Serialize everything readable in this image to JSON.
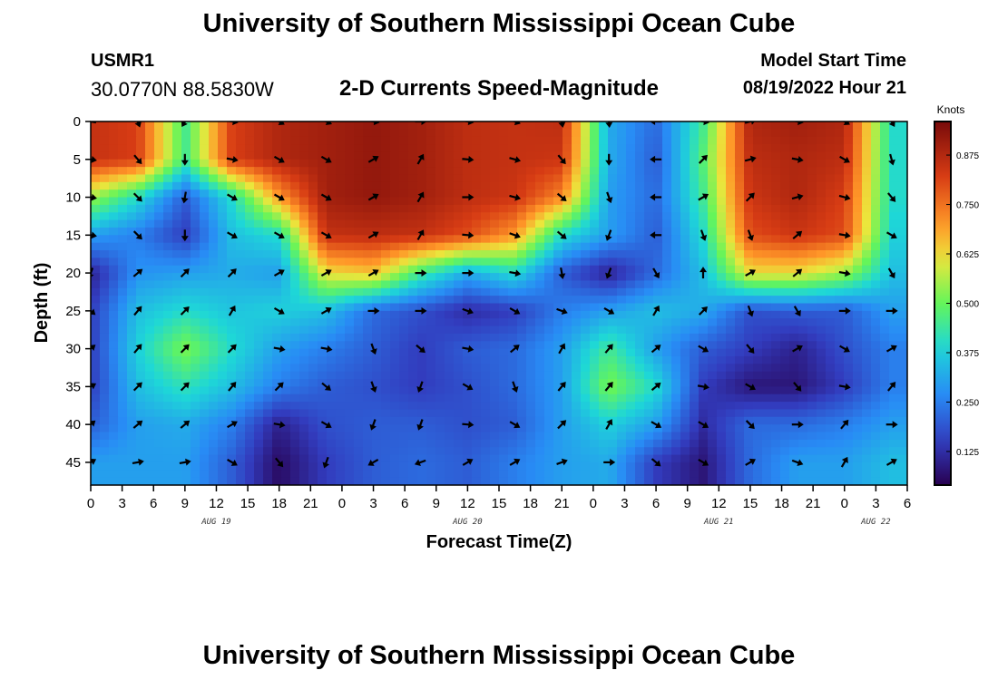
{
  "header": {
    "title": "University of Southern Mississippi Ocean Cube",
    "station": "USMR1",
    "coordinates": "30.0770N  88.5830W",
    "subtitle": "2-D Currents Speed-Magnitude",
    "model_start_label": "Model Start Time",
    "model_start_value": "08/19/2022 Hour 21"
  },
  "footer": {
    "title": "University of Southern Mississippi Ocean Cube"
  },
  "chart_data": {
    "type": "heatmap",
    "title": "2-D Currents Speed-Magnitude",
    "xlabel": "Forecast Time(Z)",
    "ylabel": "Depth (ft)",
    "colorbar_label": "Knots",
    "colorbar_ticks": [
      0.125,
      0.25,
      0.375,
      0.5,
      0.625,
      0.75,
      0.875
    ],
    "colorbar_tick_labels": [
      "0.125",
      "0.250",
      "0.375",
      "0.500",
      "0.625",
      "0.750",
      "0.875"
    ],
    "value_range": [
      0.04,
      0.96
    ],
    "x_range": [
      0,
      78
    ],
    "x_tick_labels": [
      "0",
      "3",
      "6",
      "9",
      "12",
      "15",
      "18",
      "21",
      "0",
      "3",
      "6",
      "9",
      "12",
      "15",
      "18",
      "21",
      "0",
      "3",
      "6",
      "9",
      "12",
      "15",
      "18",
      "21",
      "0",
      "3",
      "6"
    ],
    "date_labels": [
      {
        "label": "AUG 19",
        "hour": 12
      },
      {
        "label": "AUG 20",
        "hour": 36
      },
      {
        "label": "AUG 21",
        "hour": 60
      },
      {
        "label": "AUG 22",
        "hour": 75
      }
    ],
    "y_range": [
      0,
      48
    ],
    "y_ticks": [
      0,
      5,
      10,
      15,
      20,
      25,
      30,
      35,
      40,
      45
    ],
    "y_tick_labels": [
      "0",
      "5",
      "10",
      "15",
      "20",
      "25",
      "30",
      "35",
      "40",
      "45"
    ],
    "depths": [
      0,
      5,
      10,
      15,
      20,
      25,
      30,
      35,
      40,
      45
    ],
    "grid_hours": [
      0,
      4.5,
      9,
      13.5,
      18,
      22.5,
      27,
      31.5,
      36,
      40.5,
      45,
      49.5,
      54,
      58.5,
      63,
      67.5,
      72,
      76.5
    ],
    "speed": [
      [
        0.85,
        0.82,
        0.45,
        0.82,
        0.88,
        0.9,
        0.92,
        0.9,
        0.86,
        0.85,
        0.86,
        0.32,
        0.22,
        0.45,
        0.88,
        0.9,
        0.88,
        0.4
      ],
      [
        0.85,
        0.82,
        0.45,
        0.82,
        0.88,
        0.9,
        0.92,
        0.9,
        0.86,
        0.85,
        0.84,
        0.32,
        0.2,
        0.48,
        0.86,
        0.88,
        0.86,
        0.4
      ],
      [
        0.55,
        0.4,
        0.2,
        0.4,
        0.7,
        0.9,
        0.92,
        0.9,
        0.86,
        0.84,
        0.72,
        0.3,
        0.22,
        0.45,
        0.84,
        0.88,
        0.82,
        0.4
      ],
      [
        0.3,
        0.25,
        0.15,
        0.35,
        0.4,
        0.85,
        0.86,
        0.85,
        0.8,
        0.7,
        0.4,
        0.3,
        0.2,
        0.4,
        0.8,
        0.84,
        0.8,
        0.38
      ],
      [
        0.1,
        0.28,
        0.3,
        0.32,
        0.3,
        0.62,
        0.65,
        0.45,
        0.32,
        0.4,
        0.2,
        0.1,
        0.22,
        0.35,
        0.62,
        0.62,
        0.55,
        0.35
      ],
      [
        0.15,
        0.35,
        0.4,
        0.36,
        0.38,
        0.35,
        0.22,
        0.18,
        0.12,
        0.15,
        0.25,
        0.3,
        0.35,
        0.32,
        0.18,
        0.2,
        0.2,
        0.3
      ],
      [
        0.15,
        0.38,
        0.52,
        0.4,
        0.3,
        0.25,
        0.2,
        0.15,
        0.2,
        0.22,
        0.3,
        0.45,
        0.3,
        0.2,
        0.15,
        0.1,
        0.18,
        0.25
      ],
      [
        0.15,
        0.35,
        0.42,
        0.35,
        0.25,
        0.2,
        0.18,
        0.15,
        0.18,
        0.22,
        0.3,
        0.52,
        0.4,
        0.15,
        0.08,
        0.08,
        0.15,
        0.25
      ],
      [
        0.2,
        0.3,
        0.32,
        0.25,
        0.1,
        0.18,
        0.2,
        0.2,
        0.18,
        0.2,
        0.3,
        0.38,
        0.3,
        0.12,
        0.22,
        0.22,
        0.25,
        0.3
      ],
      [
        0.3,
        0.3,
        0.3,
        0.2,
        0.06,
        0.15,
        0.2,
        0.22,
        0.2,
        0.25,
        0.3,
        0.32,
        0.15,
        0.08,
        0.22,
        0.3,
        0.3,
        0.35
      ]
    ],
    "direction_deg": [
      [
        280,
        160,
        210,
        100,
        120,
        115,
        100,
        90,
        100,
        110,
        170,
        175,
        270,
        100,
        75,
        100,
        120,
        150
      ],
      [
        100,
        140,
        180,
        100,
        120,
        120,
        60,
        30,
        95,
        105,
        140,
        180,
        270,
        45,
        75,
        100,
        120,
        165
      ],
      [
        100,
        135,
        190,
        120,
        120,
        120,
        60,
        30,
        90,
        105,
        130,
        160,
        270,
        60,
        45,
        75,
        105,
        140
      ],
      [
        100,
        135,
        180,
        120,
        120,
        120,
        60,
        30,
        95,
        110,
        130,
        200,
        270,
        160,
        160,
        50,
        100,
        120
      ],
      [
        200,
        50,
        45,
        45,
        60,
        60,
        60,
        90,
        90,
        100,
        170,
        200,
        150,
        0,
        60,
        50,
        100,
        150
      ],
      [
        130,
        40,
        45,
        30,
        120,
        60,
        90,
        90,
        110,
        120,
        110,
        120,
        30,
        45,
        160,
        150,
        90,
        90
      ],
      [
        50,
        40,
        45,
        45,
        100,
        100,
        160,
        130,
        100,
        50,
        30,
        40,
        50,
        120,
        140,
        60,
        120,
        60
      ],
      [
        60,
        45,
        45,
        40,
        45,
        130,
        160,
        200,
        120,
        160,
        40,
        40,
        50,
        100,
        120,
        140,
        100,
        40
      ],
      [
        50,
        50,
        50,
        60,
        100,
        120,
        200,
        200,
        95,
        120,
        45,
        30,
        120,
        120,
        135,
        90,
        40,
        90
      ],
      [
        60,
        80,
        80,
        120,
        140,
        200,
        240,
        250,
        60,
        60,
        70,
        90,
        130,
        120,
        60,
        110,
        30,
        60
      ]
    ]
  }
}
